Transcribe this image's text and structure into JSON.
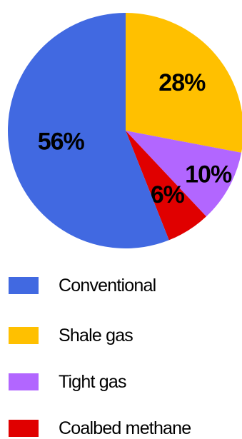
{
  "chart_data": {
    "type": "pie",
    "categories": [
      "Shale gas",
      "Tight gas",
      "Coalbed methane",
      "Conventional"
    ],
    "values": [
      28,
      10,
      6,
      56
    ],
    "labels": [
      "28%",
      "10%",
      "6%",
      "56%"
    ],
    "colors": [
      "#FFC000",
      "#B266FF",
      "#E00000",
      "#4169E1"
    ],
    "start_angle_deg": 0,
    "direction": "clockwise",
    "title": "",
    "legend": {
      "placement": "bottom",
      "items": [
        {
          "label": "Conventional",
          "color": "#4169E1"
        },
        {
          "label": "Shale gas",
          "color": "#FFC000"
        },
        {
          "label": "Tight gas",
          "color": "#B266FF"
        },
        {
          "label": "Coalbed methane",
          "color": "#E00000"
        }
      ]
    }
  }
}
